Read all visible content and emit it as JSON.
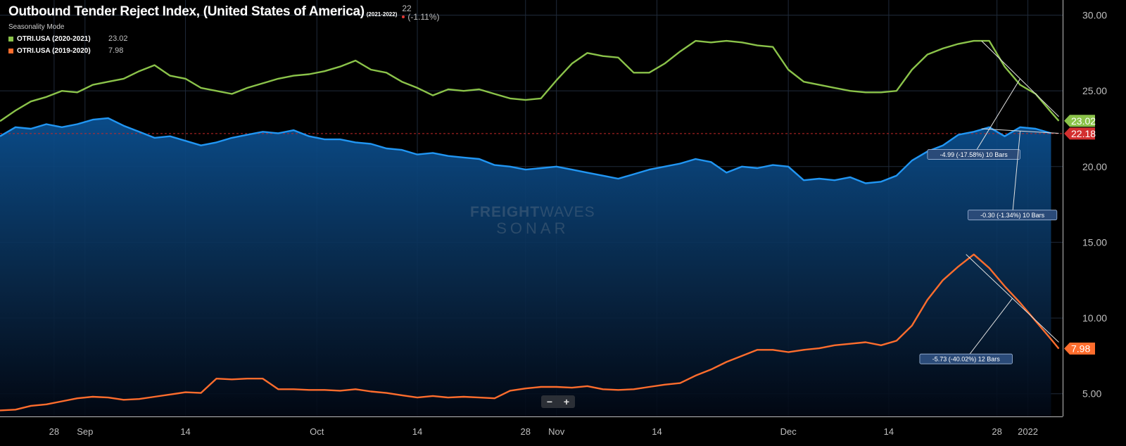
{
  "header": {
    "title": "Outbound Tender Reject Index, (United States of America)",
    "period": "(2021-2022)",
    "last_value": "22",
    "last_change": "(-1.11%)",
    "mode_label": "Seasonality Mode"
  },
  "legend": [
    {
      "name": "OTRI.USA (2020-2021)",
      "value": "23.02",
      "color": "#8bc34a"
    },
    {
      "name": "OTRI.USA (2019-2020)",
      "value": "7.98",
      "color": "#ff6d2d"
    }
  ],
  "watermark": {
    "brand_bold": "FREIGHT",
    "brand_light": "WAVES",
    "product": "SONAR"
  },
  "zoom": {
    "minus": "−",
    "plus": "+"
  },
  "chart_data": {
    "type": "line",
    "x_unit": "days from Aug 21",
    "x_ticks": [
      {
        "x": 7,
        "label": "28"
      },
      {
        "x": 11,
        "label": "Sep"
      },
      {
        "x": 24,
        "label": "14"
      },
      {
        "x": 41,
        "label": "Oct"
      },
      {
        "x": 54,
        "label": "14"
      },
      {
        "x": 68,
        "label": "28"
      },
      {
        "x": 72,
        "label": "Nov"
      },
      {
        "x": 85,
        "label": "14"
      },
      {
        "x": 102,
        "label": "Dec"
      },
      {
        "x": 115,
        "label": "14"
      },
      {
        "x": 129,
        "label": "28"
      },
      {
        "x": 133,
        "label": "2022"
      }
    ],
    "y_ticks": [
      "5.00",
      "10.00",
      "15.00",
      "20.00",
      "25.00",
      "30.00"
    ],
    "ylim": [
      3.5,
      31
    ],
    "xlim": [
      0,
      137.5
    ],
    "series": [
      {
        "name": "OTRI.USA (2021-2022)",
        "color": "#2196f3",
        "style": "area",
        "points": [
          [
            0,
            22.0
          ],
          [
            2,
            22.6
          ],
          [
            4,
            22.5
          ],
          [
            6,
            22.8
          ],
          [
            8,
            22.6
          ],
          [
            10,
            22.8
          ],
          [
            12,
            23.1
          ],
          [
            14,
            23.2
          ],
          [
            16,
            22.7
          ],
          [
            18,
            22.3
          ],
          [
            20,
            21.9
          ],
          [
            22,
            22.0
          ],
          [
            24,
            21.7
          ],
          [
            26,
            21.4
          ],
          [
            28,
            21.6
          ],
          [
            30,
            21.9
          ],
          [
            32,
            22.1
          ],
          [
            34,
            22.3
          ],
          [
            36,
            22.2
          ],
          [
            38,
            22.4
          ],
          [
            40,
            22.0
          ],
          [
            42,
            21.8
          ],
          [
            44,
            21.8
          ],
          [
            46,
            21.6
          ],
          [
            48,
            21.5
          ],
          [
            50,
            21.2
          ],
          [
            52,
            21.1
          ],
          [
            54,
            20.8
          ],
          [
            56,
            20.9
          ],
          [
            58,
            20.7
          ],
          [
            60,
            20.6
          ],
          [
            62,
            20.5
          ],
          [
            64,
            20.1
          ],
          [
            66,
            20.0
          ],
          [
            68,
            19.8
          ],
          [
            70,
            19.9
          ],
          [
            72,
            20.0
          ],
          [
            74,
            19.8
          ],
          [
            76,
            19.6
          ],
          [
            78,
            19.4
          ],
          [
            80,
            19.2
          ],
          [
            82,
            19.5
          ],
          [
            84,
            19.8
          ],
          [
            86,
            20.0
          ],
          [
            88,
            20.2
          ],
          [
            90,
            20.5
          ],
          [
            92,
            20.3
          ],
          [
            94,
            19.6
          ],
          [
            96,
            20.0
          ],
          [
            98,
            19.9
          ],
          [
            100,
            20.1
          ],
          [
            102,
            20.0
          ],
          [
            104,
            19.1
          ],
          [
            106,
            19.2
          ],
          [
            108,
            19.1
          ],
          [
            110,
            19.3
          ],
          [
            112,
            18.9
          ],
          [
            114,
            19.0
          ],
          [
            116,
            19.4
          ],
          [
            118,
            20.4
          ],
          [
            120,
            21.0
          ],
          [
            122,
            21.4
          ],
          [
            124,
            22.1
          ],
          [
            126,
            22.3
          ],
          [
            128,
            22.6
          ],
          [
            130,
            22.0
          ],
          [
            132,
            22.6
          ],
          [
            134,
            22.5
          ],
          [
            136,
            22.2
          ]
        ]
      },
      {
        "name": "OTRI.USA (2020-2021)",
        "color": "#8bc34a",
        "style": "line",
        "points": [
          [
            0,
            23.0
          ],
          [
            2,
            23.7
          ],
          [
            4,
            24.3
          ],
          [
            6,
            24.6
          ],
          [
            8,
            25.0
          ],
          [
            10,
            24.9
          ],
          [
            12,
            25.4
          ],
          [
            14,
            25.6
          ],
          [
            16,
            25.8
          ],
          [
            18,
            26.3
          ],
          [
            20,
            26.7
          ],
          [
            22,
            26.0
          ],
          [
            24,
            25.8
          ],
          [
            26,
            25.2
          ],
          [
            28,
            25.0
          ],
          [
            30,
            24.8
          ],
          [
            32,
            25.2
          ],
          [
            34,
            25.5
          ],
          [
            36,
            25.8
          ],
          [
            38,
            26.0
          ],
          [
            40,
            26.1
          ],
          [
            42,
            26.3
          ],
          [
            44,
            26.6
          ],
          [
            46,
            27.0
          ],
          [
            48,
            26.4
          ],
          [
            50,
            26.2
          ],
          [
            52,
            25.6
          ],
          [
            54,
            25.2
          ],
          [
            56,
            24.7
          ],
          [
            58,
            25.1
          ],
          [
            60,
            25.0
          ],
          [
            62,
            25.1
          ],
          [
            64,
            24.8
          ],
          [
            66,
            24.5
          ],
          [
            68,
            24.4
          ],
          [
            70,
            24.5
          ],
          [
            72,
            25.7
          ],
          [
            74,
            26.8
          ],
          [
            76,
            27.5
          ],
          [
            78,
            27.3
          ],
          [
            80,
            27.2
          ],
          [
            82,
            26.2
          ],
          [
            84,
            26.2
          ],
          [
            86,
            26.8
          ],
          [
            88,
            27.6
          ],
          [
            90,
            28.3
          ],
          [
            92,
            28.2
          ],
          [
            94,
            28.3
          ],
          [
            96,
            28.2
          ],
          [
            98,
            28.0
          ],
          [
            100,
            27.9
          ],
          [
            102,
            26.4
          ],
          [
            104,
            25.6
          ],
          [
            106,
            25.4
          ],
          [
            108,
            25.2
          ],
          [
            110,
            25.0
          ],
          [
            112,
            24.9
          ],
          [
            114,
            24.9
          ],
          [
            116,
            25.0
          ],
          [
            118,
            26.4
          ],
          [
            120,
            27.4
          ],
          [
            122,
            27.8
          ],
          [
            124,
            28.1
          ],
          [
            126,
            28.3
          ],
          [
            128,
            28.3
          ],
          [
            130,
            26.6
          ],
          [
            132,
            25.4
          ],
          [
            134,
            24.8
          ],
          [
            136,
            23.6
          ],
          [
            137,
            23.02
          ]
        ]
      },
      {
        "name": "OTRI.USA (2019-2020)",
        "color": "#ff6d2d",
        "style": "line",
        "points": [
          [
            0,
            3.9
          ],
          [
            2,
            3.95
          ],
          [
            4,
            4.2
          ],
          [
            6,
            4.3
          ],
          [
            8,
            4.5
          ],
          [
            10,
            4.7
          ],
          [
            12,
            4.8
          ],
          [
            14,
            4.75
          ],
          [
            16,
            4.6
          ],
          [
            18,
            4.65
          ],
          [
            20,
            4.8
          ],
          [
            22,
            4.95
          ],
          [
            24,
            5.1
          ],
          [
            26,
            5.05
          ],
          [
            28,
            6.0
          ],
          [
            30,
            5.95
          ],
          [
            32,
            6.0
          ],
          [
            34,
            6.0
          ],
          [
            36,
            5.3
          ],
          [
            38,
            5.3
          ],
          [
            40,
            5.25
          ],
          [
            42,
            5.25
          ],
          [
            44,
            5.2
          ],
          [
            46,
            5.3
          ],
          [
            48,
            5.15
          ],
          [
            50,
            5.05
          ],
          [
            52,
            4.9
          ],
          [
            54,
            4.75
          ],
          [
            56,
            4.85
          ],
          [
            58,
            4.75
          ],
          [
            60,
            4.8
          ],
          [
            62,
            4.75
          ],
          [
            64,
            4.7
          ],
          [
            66,
            5.2
          ],
          [
            68,
            5.35
          ],
          [
            70,
            5.45
          ],
          [
            72,
            5.45
          ],
          [
            74,
            5.4
          ],
          [
            76,
            5.5
          ],
          [
            78,
            5.3
          ],
          [
            80,
            5.25
          ],
          [
            82,
            5.3
          ],
          [
            84,
            5.45
          ],
          [
            86,
            5.6
          ],
          [
            88,
            5.7
          ],
          [
            90,
            6.2
          ],
          [
            92,
            6.6
          ],
          [
            94,
            7.1
          ],
          [
            96,
            7.5
          ],
          [
            98,
            7.9
          ],
          [
            100,
            7.9
          ],
          [
            102,
            7.75
          ],
          [
            104,
            7.9
          ],
          [
            106,
            8.0
          ],
          [
            108,
            8.2
          ],
          [
            110,
            8.3
          ],
          [
            112,
            8.4
          ],
          [
            114,
            8.2
          ],
          [
            116,
            8.5
          ],
          [
            118,
            9.5
          ],
          [
            120,
            11.2
          ],
          [
            122,
            12.5
          ],
          [
            124,
            13.4
          ],
          [
            126,
            14.2
          ],
          [
            128,
            13.3
          ],
          [
            130,
            12.1
          ],
          [
            132,
            11.0
          ],
          [
            134,
            9.8
          ],
          [
            136,
            8.6
          ],
          [
            137,
            7.98
          ]
        ]
      }
    ],
    "price_tags": [
      {
        "label": "23.02",
        "value": 23.02,
        "color": "#8bc34a"
      },
      {
        "label": "22.18",
        "value": 22.18,
        "color": "#d32f2f"
      },
      {
        "label": "7.98",
        "value": 7.98,
        "color": "#ff6d2d"
      }
    ],
    "ref_line": {
      "value": 22.18,
      "color": "#c62828"
    },
    "annotations": [
      {
        "text": "-4.99 (-17.58%) 10 Bars",
        "from": [
          127,
          28.3
        ],
        "to": [
          137,
          23.3
        ],
        "label_at": [
          126,
          20.8
        ],
        "anchor_t": 0.5
      },
      {
        "text": "-0.30 (-1.34%) 10 Bars",
        "from": [
          127,
          22.5
        ],
        "to": [
          137,
          22.2
        ],
        "label_at": [
          131,
          16.8
        ],
        "anchor_t": 0.5
      },
      {
        "text": "-5.73 (-40.02%) 12 Bars",
        "from": [
          125,
          14.2
        ],
        "to": [
          137,
          8.4
        ],
        "label_at": [
          125,
          7.3
        ],
        "anchor_t": 0.5
      }
    ]
  }
}
